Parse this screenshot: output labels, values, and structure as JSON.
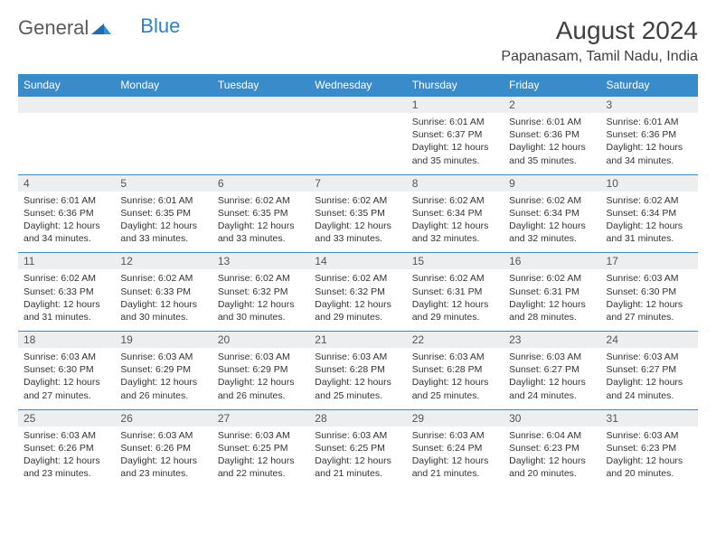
{
  "logo": {
    "text_a": "General",
    "text_b": "Blue"
  },
  "title": "August 2024",
  "location": "Papanasam, Tamil Nadu, India",
  "header_color": "#3a8bc9",
  "day_headers": [
    "Sunday",
    "Monday",
    "Tuesday",
    "Wednesday",
    "Thursday",
    "Friday",
    "Saturday"
  ],
  "weeks": [
    {
      "nums": [
        "",
        "",
        "",
        "",
        "1",
        "2",
        "3"
      ],
      "cells": [
        null,
        null,
        null,
        null,
        {
          "sunrise": "6:01 AM",
          "sunset": "6:37 PM",
          "daylight": "12 hours and 35 minutes."
        },
        {
          "sunrise": "6:01 AM",
          "sunset": "6:36 PM",
          "daylight": "12 hours and 35 minutes."
        },
        {
          "sunrise": "6:01 AM",
          "sunset": "6:36 PM",
          "daylight": "12 hours and 34 minutes."
        }
      ]
    },
    {
      "nums": [
        "4",
        "5",
        "6",
        "7",
        "8",
        "9",
        "10"
      ],
      "cells": [
        {
          "sunrise": "6:01 AM",
          "sunset": "6:36 PM",
          "daylight": "12 hours and 34 minutes."
        },
        {
          "sunrise": "6:01 AM",
          "sunset": "6:35 PM",
          "daylight": "12 hours and 33 minutes."
        },
        {
          "sunrise": "6:02 AM",
          "sunset": "6:35 PM",
          "daylight": "12 hours and 33 minutes."
        },
        {
          "sunrise": "6:02 AM",
          "sunset": "6:35 PM",
          "daylight": "12 hours and 33 minutes."
        },
        {
          "sunrise": "6:02 AM",
          "sunset": "6:34 PM",
          "daylight": "12 hours and 32 minutes."
        },
        {
          "sunrise": "6:02 AM",
          "sunset": "6:34 PM",
          "daylight": "12 hours and 32 minutes."
        },
        {
          "sunrise": "6:02 AM",
          "sunset": "6:34 PM",
          "daylight": "12 hours and 31 minutes."
        }
      ]
    },
    {
      "nums": [
        "11",
        "12",
        "13",
        "14",
        "15",
        "16",
        "17"
      ],
      "cells": [
        {
          "sunrise": "6:02 AM",
          "sunset": "6:33 PM",
          "daylight": "12 hours and 31 minutes."
        },
        {
          "sunrise": "6:02 AM",
          "sunset": "6:33 PM",
          "daylight": "12 hours and 30 minutes."
        },
        {
          "sunrise": "6:02 AM",
          "sunset": "6:32 PM",
          "daylight": "12 hours and 30 minutes."
        },
        {
          "sunrise": "6:02 AM",
          "sunset": "6:32 PM",
          "daylight": "12 hours and 29 minutes."
        },
        {
          "sunrise": "6:02 AM",
          "sunset": "6:31 PM",
          "daylight": "12 hours and 29 minutes."
        },
        {
          "sunrise": "6:02 AM",
          "sunset": "6:31 PM",
          "daylight": "12 hours and 28 minutes."
        },
        {
          "sunrise": "6:03 AM",
          "sunset": "6:30 PM",
          "daylight": "12 hours and 27 minutes."
        }
      ]
    },
    {
      "nums": [
        "18",
        "19",
        "20",
        "21",
        "22",
        "23",
        "24"
      ],
      "cells": [
        {
          "sunrise": "6:03 AM",
          "sunset": "6:30 PM",
          "daylight": "12 hours and 27 minutes."
        },
        {
          "sunrise": "6:03 AM",
          "sunset": "6:29 PM",
          "daylight": "12 hours and 26 minutes."
        },
        {
          "sunrise": "6:03 AM",
          "sunset": "6:29 PM",
          "daylight": "12 hours and 26 minutes."
        },
        {
          "sunrise": "6:03 AM",
          "sunset": "6:28 PM",
          "daylight": "12 hours and 25 minutes."
        },
        {
          "sunrise": "6:03 AM",
          "sunset": "6:28 PM",
          "daylight": "12 hours and 25 minutes."
        },
        {
          "sunrise": "6:03 AM",
          "sunset": "6:27 PM",
          "daylight": "12 hours and 24 minutes."
        },
        {
          "sunrise": "6:03 AM",
          "sunset": "6:27 PM",
          "daylight": "12 hours and 24 minutes."
        }
      ]
    },
    {
      "nums": [
        "25",
        "26",
        "27",
        "28",
        "29",
        "30",
        "31"
      ],
      "cells": [
        {
          "sunrise": "6:03 AM",
          "sunset": "6:26 PM",
          "daylight": "12 hours and 23 minutes."
        },
        {
          "sunrise": "6:03 AM",
          "sunset": "6:26 PM",
          "daylight": "12 hours and 23 minutes."
        },
        {
          "sunrise": "6:03 AM",
          "sunset": "6:25 PM",
          "daylight": "12 hours and 22 minutes."
        },
        {
          "sunrise": "6:03 AM",
          "sunset": "6:25 PM",
          "daylight": "12 hours and 21 minutes."
        },
        {
          "sunrise": "6:03 AM",
          "sunset": "6:24 PM",
          "daylight": "12 hours and 21 minutes."
        },
        {
          "sunrise": "6:04 AM",
          "sunset": "6:23 PM",
          "daylight": "12 hours and 20 minutes."
        },
        {
          "sunrise": "6:03 AM",
          "sunset": "6:23 PM",
          "daylight": "12 hours and 20 minutes."
        }
      ]
    }
  ],
  "labels": {
    "sunrise": "Sunrise:",
    "sunset": "Sunset:",
    "daylight": "Daylight:"
  }
}
